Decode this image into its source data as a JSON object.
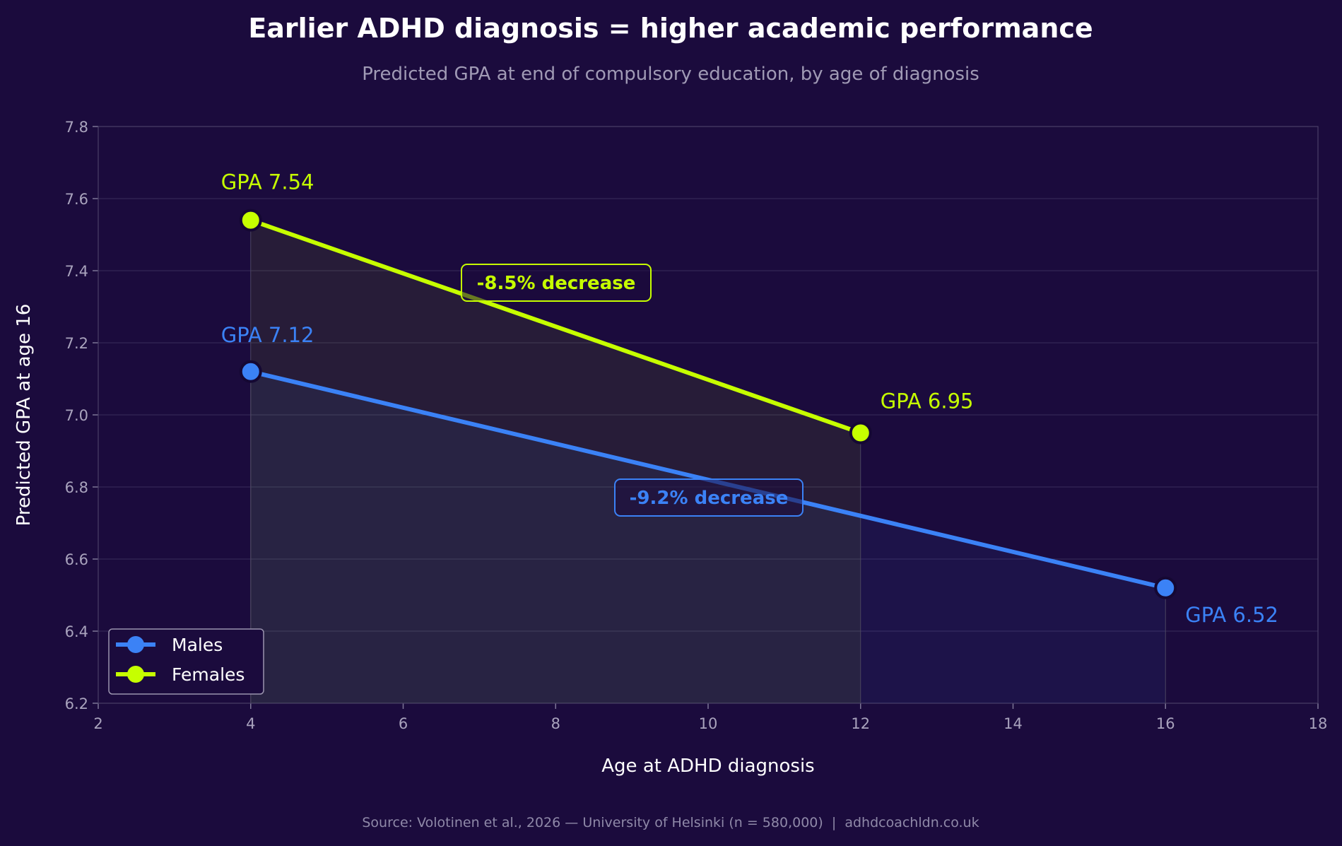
{
  "chart_data": {
    "type": "line",
    "title": "Earlier ADHD diagnosis = higher academic performance",
    "subtitle": "Predicted GPA at end of compulsory education, by age of diagnosis",
    "xlabel": "Age at ADHD diagnosis",
    "ylabel": "Predicted GPA at age 16",
    "xlim": [
      2,
      18
    ],
    "ylim": [
      6.2,
      7.8
    ],
    "xticks": [
      "2",
      "4",
      "6",
      "8",
      "10",
      "12",
      "14",
      "16",
      "18"
    ],
    "yticks": [
      "6.2",
      "6.4",
      "6.6",
      "6.8",
      "7.0",
      "7.2",
      "7.4",
      "7.6",
      "7.8"
    ],
    "grid": true,
    "legend_placement": "bottom-left",
    "series": [
      {
        "name": "Males",
        "color": "#3b82f6",
        "x": [
          4,
          16
        ],
        "y": [
          7.12,
          6.52
        ],
        "labels": [
          "GPA 7.12",
          "GPA 6.52"
        ],
        "annotation": "-9.2% decrease"
      },
      {
        "name": "Females",
        "color": "#c6ff00",
        "x": [
          4,
          12
        ],
        "y": [
          7.54,
          6.95
        ],
        "labels": [
          "GPA 7.54",
          "GPA 6.95"
        ],
        "annotation": "-8.5% decrease"
      }
    ],
    "source": "Source: Volotinen et al., 2026 — University of Helsinki (n = 580,000)  |  adhdcoachldn.co.uk"
  },
  "colors": {
    "background": "#1b0b3d",
    "grid": "#3a2d5c"
  }
}
